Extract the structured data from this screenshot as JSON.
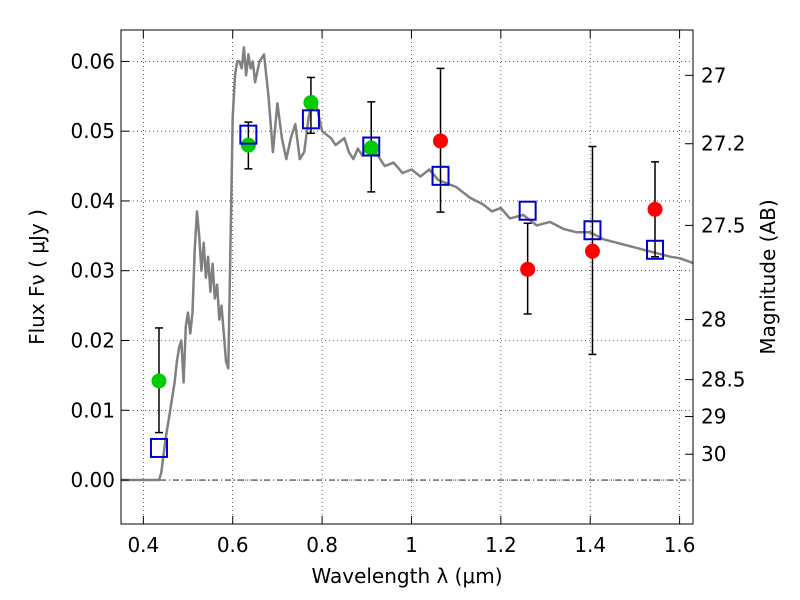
{
  "chart_data": {
    "type": "scatter",
    "title": "",
    "xlabel": "Wavelength  λ (μm)",
    "ylabel": "Flux  Fν  ( μJy )",
    "ylabel2": "Magnitude (AB)",
    "xlim": [
      0.35,
      1.63
    ],
    "ylim": [
      -0.0063,
      0.0645
    ],
    "grid": true,
    "grid_style": "dotted",
    "x_ticks": [
      0.4,
      0.6,
      0.8,
      1.0,
      1.2,
      1.4,
      1.6
    ],
    "x_tick_labels": [
      "0.4",
      "0.6",
      "0.8",
      "1",
      "1.2",
      "1.4",
      "1.6"
    ],
    "y_ticks": [
      0.0,
      0.01,
      0.02,
      0.03,
      0.04,
      0.05,
      0.06
    ],
    "y_tick_labels": [
      "0.00",
      "0.01",
      "0.02",
      "0.03",
      "0.04",
      "0.05",
      "0.06"
    ],
    "y2_ticks": [
      {
        "label": "27",
        "flux": 0.058
      },
      {
        "label": "27.2",
        "flux": 0.0482
      },
      {
        "label": "27.5",
        "flux": 0.0365
      },
      {
        "label": "28",
        "flux": 0.023
      },
      {
        "label": "28.5",
        "flux": 0.0144
      },
      {
        "label": "29",
        "flux": 0.0091
      },
      {
        "label": "30",
        "flux": 0.0037
      }
    ],
    "zero_line": 0.0,
    "series": [
      {
        "kind": "line",
        "color": "#808080",
        "x": [
          0.35,
          0.43,
          0.435,
          0.44,
          0.45,
          0.46,
          0.47,
          0.475,
          0.48,
          0.485,
          0.49,
          0.495,
          0.5,
          0.505,
          0.51,
          0.515,
          0.52,
          0.525,
          0.53,
          0.535,
          0.54,
          0.545,
          0.55,
          0.555,
          0.56,
          0.565,
          0.57,
          0.575,
          0.58,
          0.585,
          0.59,
          0.595,
          0.6,
          0.605,
          0.61,
          0.615,
          0.62,
          0.625,
          0.63,
          0.635,
          0.64,
          0.645,
          0.65,
          0.66,
          0.67,
          0.68,
          0.69,
          0.7,
          0.71,
          0.72,
          0.73,
          0.74,
          0.75,
          0.76,
          0.77,
          0.78,
          0.79,
          0.8,
          0.81,
          0.82,
          0.83,
          0.84,
          0.85,
          0.86,
          0.87,
          0.88,
          0.89,
          0.9,
          0.92,
          0.94,
          0.96,
          0.98,
          1.0,
          1.02,
          1.04,
          1.06,
          1.08,
          1.1,
          1.13,
          1.16,
          1.18,
          1.2,
          1.22,
          1.25,
          1.28,
          1.31,
          1.34,
          1.37,
          1.4,
          1.43,
          1.46,
          1.49,
          1.52,
          1.55,
          1.58,
          1.6,
          1.63
        ],
        "y": [
          0.0,
          0.0,
          0.0,
          0.001,
          0.006,
          0.01,
          0.014,
          0.017,
          0.019,
          0.02,
          0.014,
          0.022,
          0.024,
          0.021,
          0.024,
          0.033,
          0.0385,
          0.035,
          0.03,
          0.034,
          0.029,
          0.032,
          0.027,
          0.031,
          0.026,
          0.028,
          0.023,
          0.025,
          0.021,
          0.017,
          0.016,
          0.034,
          0.052,
          0.058,
          0.06,
          0.06,
          0.059,
          0.062,
          0.058,
          0.061,
          0.059,
          0.06,
          0.057,
          0.06,
          0.061,
          0.055,
          0.047,
          0.054,
          0.049,
          0.046,
          0.049,
          0.051,
          0.046,
          0.047,
          0.052,
          0.055,
          0.053,
          0.05,
          0.0495,
          0.049,
          0.048,
          0.0485,
          0.049,
          0.047,
          0.046,
          0.0475,
          0.0465,
          0.048,
          0.047,
          0.045,
          0.0455,
          0.044,
          0.0445,
          0.0435,
          0.0445,
          0.043,
          0.0425,
          0.042,
          0.0405,
          0.0395,
          0.0385,
          0.039,
          0.0375,
          0.038,
          0.0365,
          0.037,
          0.036,
          0.0355,
          0.0355,
          0.0345,
          0.034,
          0.0335,
          0.033,
          0.0325,
          0.032,
          0.0318,
          0.0311
        ]
      },
      {
        "kind": "errorbar",
        "color": "#000000",
        "x": [
          0.435,
          0.635,
          0.775,
          0.91,
          1.065,
          1.26,
          1.405,
          1.545
        ],
        "y_low": [
          0.0068,
          0.0446,
          0.0497,
          0.0413,
          0.0384,
          0.0238,
          0.018,
          0.032
        ],
        "y_high": [
          0.0218,
          0.0513,
          0.0577,
          0.0542,
          0.059,
          0.0368,
          0.0478,
          0.0456
        ]
      },
      {
        "kind": "points",
        "marker": "circle",
        "color": "#00cc00",
        "x": [
          0.435,
          0.635,
          0.775,
          0.91
        ],
        "y": [
          0.0142,
          0.048,
          0.0541,
          0.0476
        ]
      },
      {
        "kind": "points",
        "marker": "circle",
        "color": "#ff0000",
        "x": [
          1.065,
          1.26,
          1.405,
          1.545
        ],
        "y": [
          0.0486,
          0.0302,
          0.0328,
          0.0388
        ]
      },
      {
        "kind": "points",
        "marker": "open-square",
        "color": "#0000cc",
        "x": [
          0.435,
          0.635,
          0.775,
          0.91,
          1.065,
          1.26,
          1.405,
          1.545
        ],
        "y": [
          0.0046,
          0.0495,
          0.0517,
          0.0478,
          0.0436,
          0.0386,
          0.0358,
          0.033
        ]
      }
    ]
  }
}
